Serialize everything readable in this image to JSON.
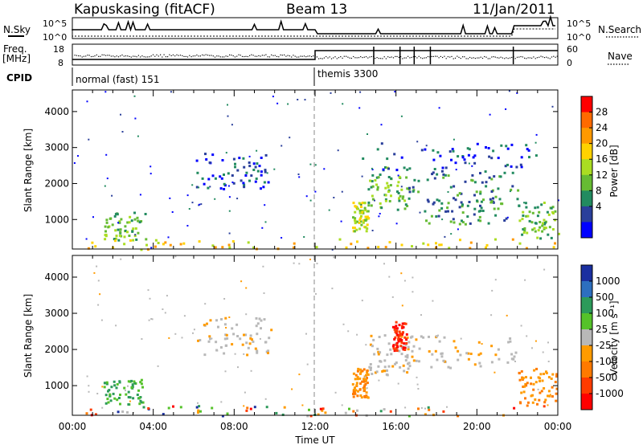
{
  "header": {
    "station": "Kapuskasing (fitACF)",
    "beam": "Beam 13",
    "date": "11/Jan/2011"
  },
  "summary_panel": {
    "nsky_label": "N.Sky",
    "nsky_ticks": [
      "10^5",
      "10^0"
    ],
    "nsearch_label": "N.Search",
    "nsearch_ticks": [
      "10^5",
      "10^0"
    ],
    "freq_label": "Freq.",
    "freq_unit": "[MHz]",
    "freq_ticks": [
      "18",
      "8"
    ],
    "nave_label": "Nave",
    "nave_ticks": [
      "60",
      "0"
    ],
    "cpid_label": "CPID",
    "cpid_segments": [
      {
        "name": "normal (fast) 151",
        "start_hour": 0,
        "end_hour": 12
      },
      {
        "name": "themis 3300",
        "start_hour": 12,
        "end_hour": 24
      }
    ]
  },
  "chart_data": [
    {
      "type": "heatmap",
      "panel": "power",
      "xlabel": "Time UT",
      "ylabel": "Slant Range [km]",
      "x_tick_labels": [
        "00:00",
        "04:00",
        "08:00",
        "12:00",
        "16:00",
        "20:00",
        "00:00"
      ],
      "x_ticks_hours": [
        0,
        4,
        8,
        12,
        16,
        20,
        24
      ],
      "xlim_hours": [
        0,
        24
      ],
      "y_ticks": [
        1000,
        2000,
        3000,
        4000
      ],
      "ylim": [
        180,
        4600
      ],
      "colorbar": {
        "label": "Power [dB]",
        "ticks": [
          "28",
          "24",
          "20",
          "16",
          "12",
          "8",
          "4"
        ],
        "colors": [
          "#ff0000",
          "#ff6a00",
          "#ff9900",
          "#ffd200",
          "#aadd22",
          "#66bb33",
          "#228b60",
          "#2a3f9b",
          "#0000ff"
        ]
      },
      "regions": [
        {
          "t0": 1.5,
          "t1": 3.6,
          "r0": 450,
          "r1": 1250,
          "level": 3
        },
        {
          "t0": 6.1,
          "t1": 9.8,
          "r0": 1850,
          "r1": 2900,
          "level": 1
        },
        {
          "t0": 13.8,
          "t1": 14.6,
          "r0": 700,
          "r1": 1500,
          "level": 4
        },
        {
          "t0": 14.6,
          "t1": 16.6,
          "r0": 1300,
          "r1": 2500,
          "level": 3
        },
        {
          "t0": 16.6,
          "t1": 22.0,
          "r0": 1500,
          "r1": 2400,
          "level": 2
        },
        {
          "t0": 17.0,
          "t1": 21.5,
          "r0": 900,
          "r1": 1600,
          "level": 2
        },
        {
          "t0": 22.0,
          "t1": 24.0,
          "r0": 500,
          "r1": 1500,
          "level": 3
        },
        {
          "t0": 14.2,
          "t1": 23.0,
          "r0": 2400,
          "r1": 3200,
          "level": 1
        },
        {
          "t0": 0.0,
          "t1": 24.0,
          "r0": 190,
          "r1": 480,
          "level": 5
        }
      ]
    },
    {
      "type": "heatmap",
      "panel": "velocity",
      "xlabel": "Time UT",
      "ylabel": "Slant Range [km]",
      "x_tick_labels": [
        "00:00",
        "04:00",
        "08:00",
        "12:00",
        "16:00",
        "20:00",
        "00:00"
      ],
      "x_ticks_hours": [
        0,
        4,
        8,
        12,
        16,
        20,
        24
      ],
      "xlim_hours": [
        0,
        24
      ],
      "y_ticks": [
        1000,
        2000,
        3000,
        4000
      ],
      "ylim": [
        180,
        4600
      ],
      "colorbar": {
        "label": "Velocity [m s⁻¹]",
        "ticks": [
          "1000",
          "500",
          "100",
          "25",
          "-25",
          "-100",
          "-500",
          "-1000"
        ],
        "colors": [
          "#1a2fa0",
          "#2d6fbf",
          "#2c9a5a",
          "#55c22a",
          "#b8b8b8",
          "#ff9b00",
          "#ff7a00",
          "#ff3b00",
          "#ff0000"
        ]
      },
      "regions": [
        {
          "t0": 1.5,
          "t1": 3.6,
          "r0": 500,
          "r1": 1200,
          "class": "green"
        },
        {
          "t0": 6.1,
          "t1": 9.8,
          "r0": 1850,
          "r1": 2900,
          "class": "grey"
        },
        {
          "t0": 13.8,
          "t1": 14.6,
          "r0": 700,
          "r1": 1500,
          "class": "orange"
        },
        {
          "t0": 14.6,
          "t1": 16.6,
          "r0": 1300,
          "r1": 2500,
          "class": "grey"
        },
        {
          "t0": 15.8,
          "t1": 16.5,
          "r0": 2000,
          "r1": 2800,
          "class": "red"
        },
        {
          "t0": 16.6,
          "t1": 22.0,
          "r0": 1500,
          "r1": 2400,
          "class": "grey"
        },
        {
          "t0": 22.0,
          "t1": 24.0,
          "r0": 500,
          "r1": 1500,
          "class": "orange"
        },
        {
          "t0": 0.0,
          "t1": 24.0,
          "r0": 190,
          "r1": 480,
          "class": "mix"
        }
      ]
    }
  ]
}
